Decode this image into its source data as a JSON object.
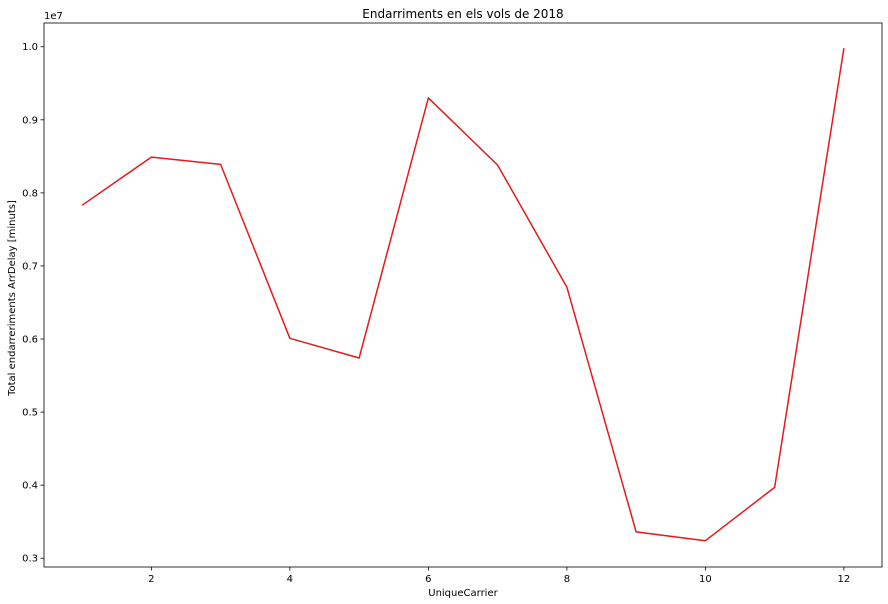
{
  "chart_data": {
    "type": "line",
    "title": "Endarriments en els vols de 2018",
    "xlabel": "UniqueCarrier",
    "ylabel": "Total endarreriments ArrDelay [minuts]",
    "y_offset_label": "1e7",
    "y_scale": 10000000,
    "x": [
      1,
      2,
      3,
      4,
      5,
      6,
      7,
      8,
      9,
      10,
      11,
      12
    ],
    "series": [
      {
        "name": "ArrDelay",
        "color": "#e41a1c",
        "values": [
          7830000,
          8490000,
          8390000,
          6010000,
          5740000,
          9300000,
          8380000,
          6710000,
          3360000,
          3240000,
          3970000,
          9980000
        ]
      }
    ],
    "xlim": [
      0.45,
      12.55
    ],
    "ylim": [
      0.288,
      1.0325
    ],
    "x_ticks": [
      2,
      4,
      6,
      8,
      10,
      12
    ],
    "y_ticks": [
      0.3,
      0.4,
      0.5,
      0.6,
      0.7,
      0.8,
      0.9,
      1.0
    ],
    "x_tick_labels": [
      "2",
      "4",
      "6",
      "8",
      "10",
      "12"
    ],
    "y_tick_labels": [
      "0.3",
      "0.4",
      "0.5",
      "0.6",
      "0.7",
      "0.8",
      "0.9",
      "1.0"
    ],
    "grid": false,
    "legend": "none"
  }
}
